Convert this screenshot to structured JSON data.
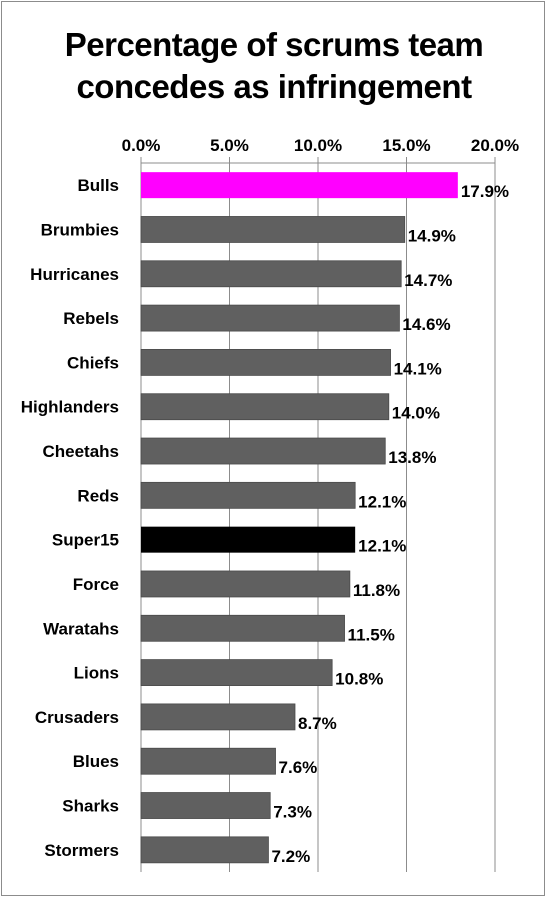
{
  "chart_data": {
    "type": "bar",
    "orientation": "horizontal",
    "title_lines": [
      "Percentage of scrums team",
      "concedes as infringement"
    ],
    "categories": [
      "Bulls",
      "Brumbies",
      "Hurricanes",
      "Rebels",
      "Chiefs",
      "Highlanders",
      "Cheetahs",
      "Reds",
      "Super15",
      "Force",
      "Waratahs",
      "Lions",
      "Crusaders",
      "Blues",
      "Sharks",
      "Stormers"
    ],
    "values": [
      17.9,
      14.9,
      14.7,
      14.6,
      14.1,
      14.0,
      13.8,
      12.1,
      12.1,
      11.8,
      11.5,
      10.8,
      8.7,
      7.6,
      7.3,
      7.2
    ],
    "value_labels": [
      "17.9%",
      "14.9%",
      "14.7%",
      "14.6%",
      "14.1%",
      "14.0%",
      "13.8%",
      "12.1%",
      "12.1%",
      "11.8%",
      "11.5%",
      "10.8%",
      "8.7%",
      "7.6%",
      "7.3%",
      "7.2%"
    ],
    "xlim": [
      0,
      20
    ],
    "x_ticks": [
      0,
      5,
      10,
      15,
      20
    ],
    "x_tick_labels": [
      "0.0%",
      "5.0%",
      "10.0%",
      "15.0%",
      "20.0%"
    ],
    "x_axis_position": "top",
    "grid": true,
    "legend": "none",
    "bar_colors": [
      "#ff00ff",
      "#606060",
      "#606060",
      "#606060",
      "#606060",
      "#606060",
      "#606060",
      "#606060",
      "#000000",
      "#606060",
      "#606060",
      "#606060",
      "#606060",
      "#606060",
      "#606060",
      "#606060"
    ]
  }
}
